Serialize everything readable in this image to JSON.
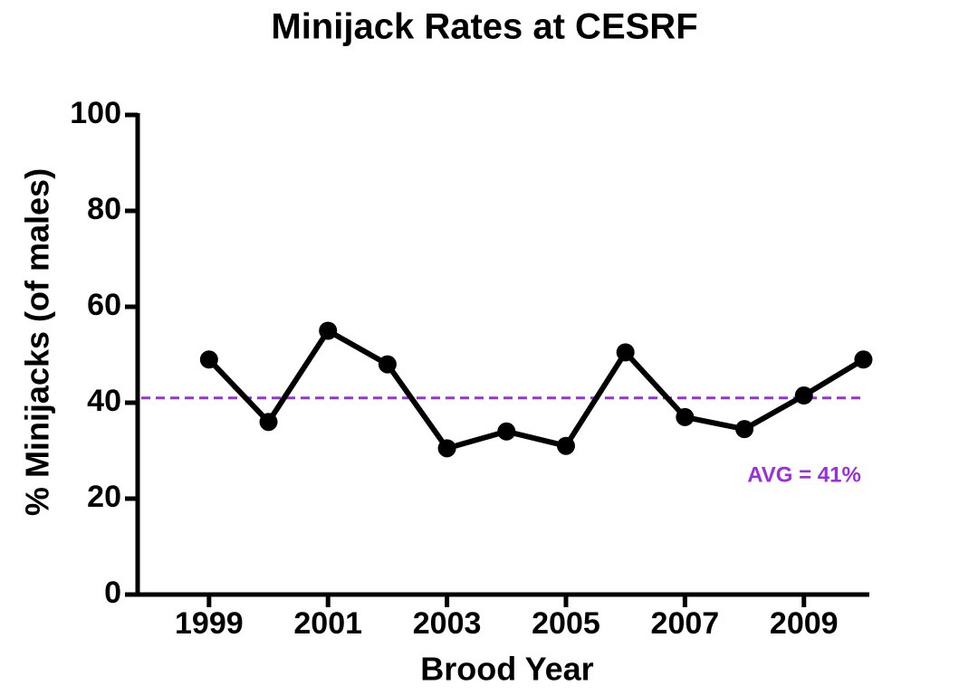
{
  "chart_data": {
    "type": "line",
    "title": "Minijack Rates at CESRF",
    "x_label": "Brood Year",
    "y_label": "% Minijacks (of males)",
    "x": [
      1999,
      2000,
      2001,
      2002,
      2003,
      2004,
      2005,
      2006,
      2007,
      2008,
      2009,
      2010
    ],
    "values": [
      49,
      36,
      55,
      48,
      30.5,
      34,
      31,
      50.5,
      37,
      34.5,
      41.5,
      49
    ],
    "color": "#000000",
    "average": 41,
    "average_color": "#9b30d9",
    "annotation": "AVG = 41%",
    "xlim": [
      1997.8,
      2010.1
    ],
    "xticks": [
      1999,
      2001,
      2003,
      2005,
      2007,
      2009
    ],
    "ylim": [
      0,
      100
    ],
    "yticks": [
      0,
      20,
      40,
      60,
      80,
      100
    ]
  }
}
